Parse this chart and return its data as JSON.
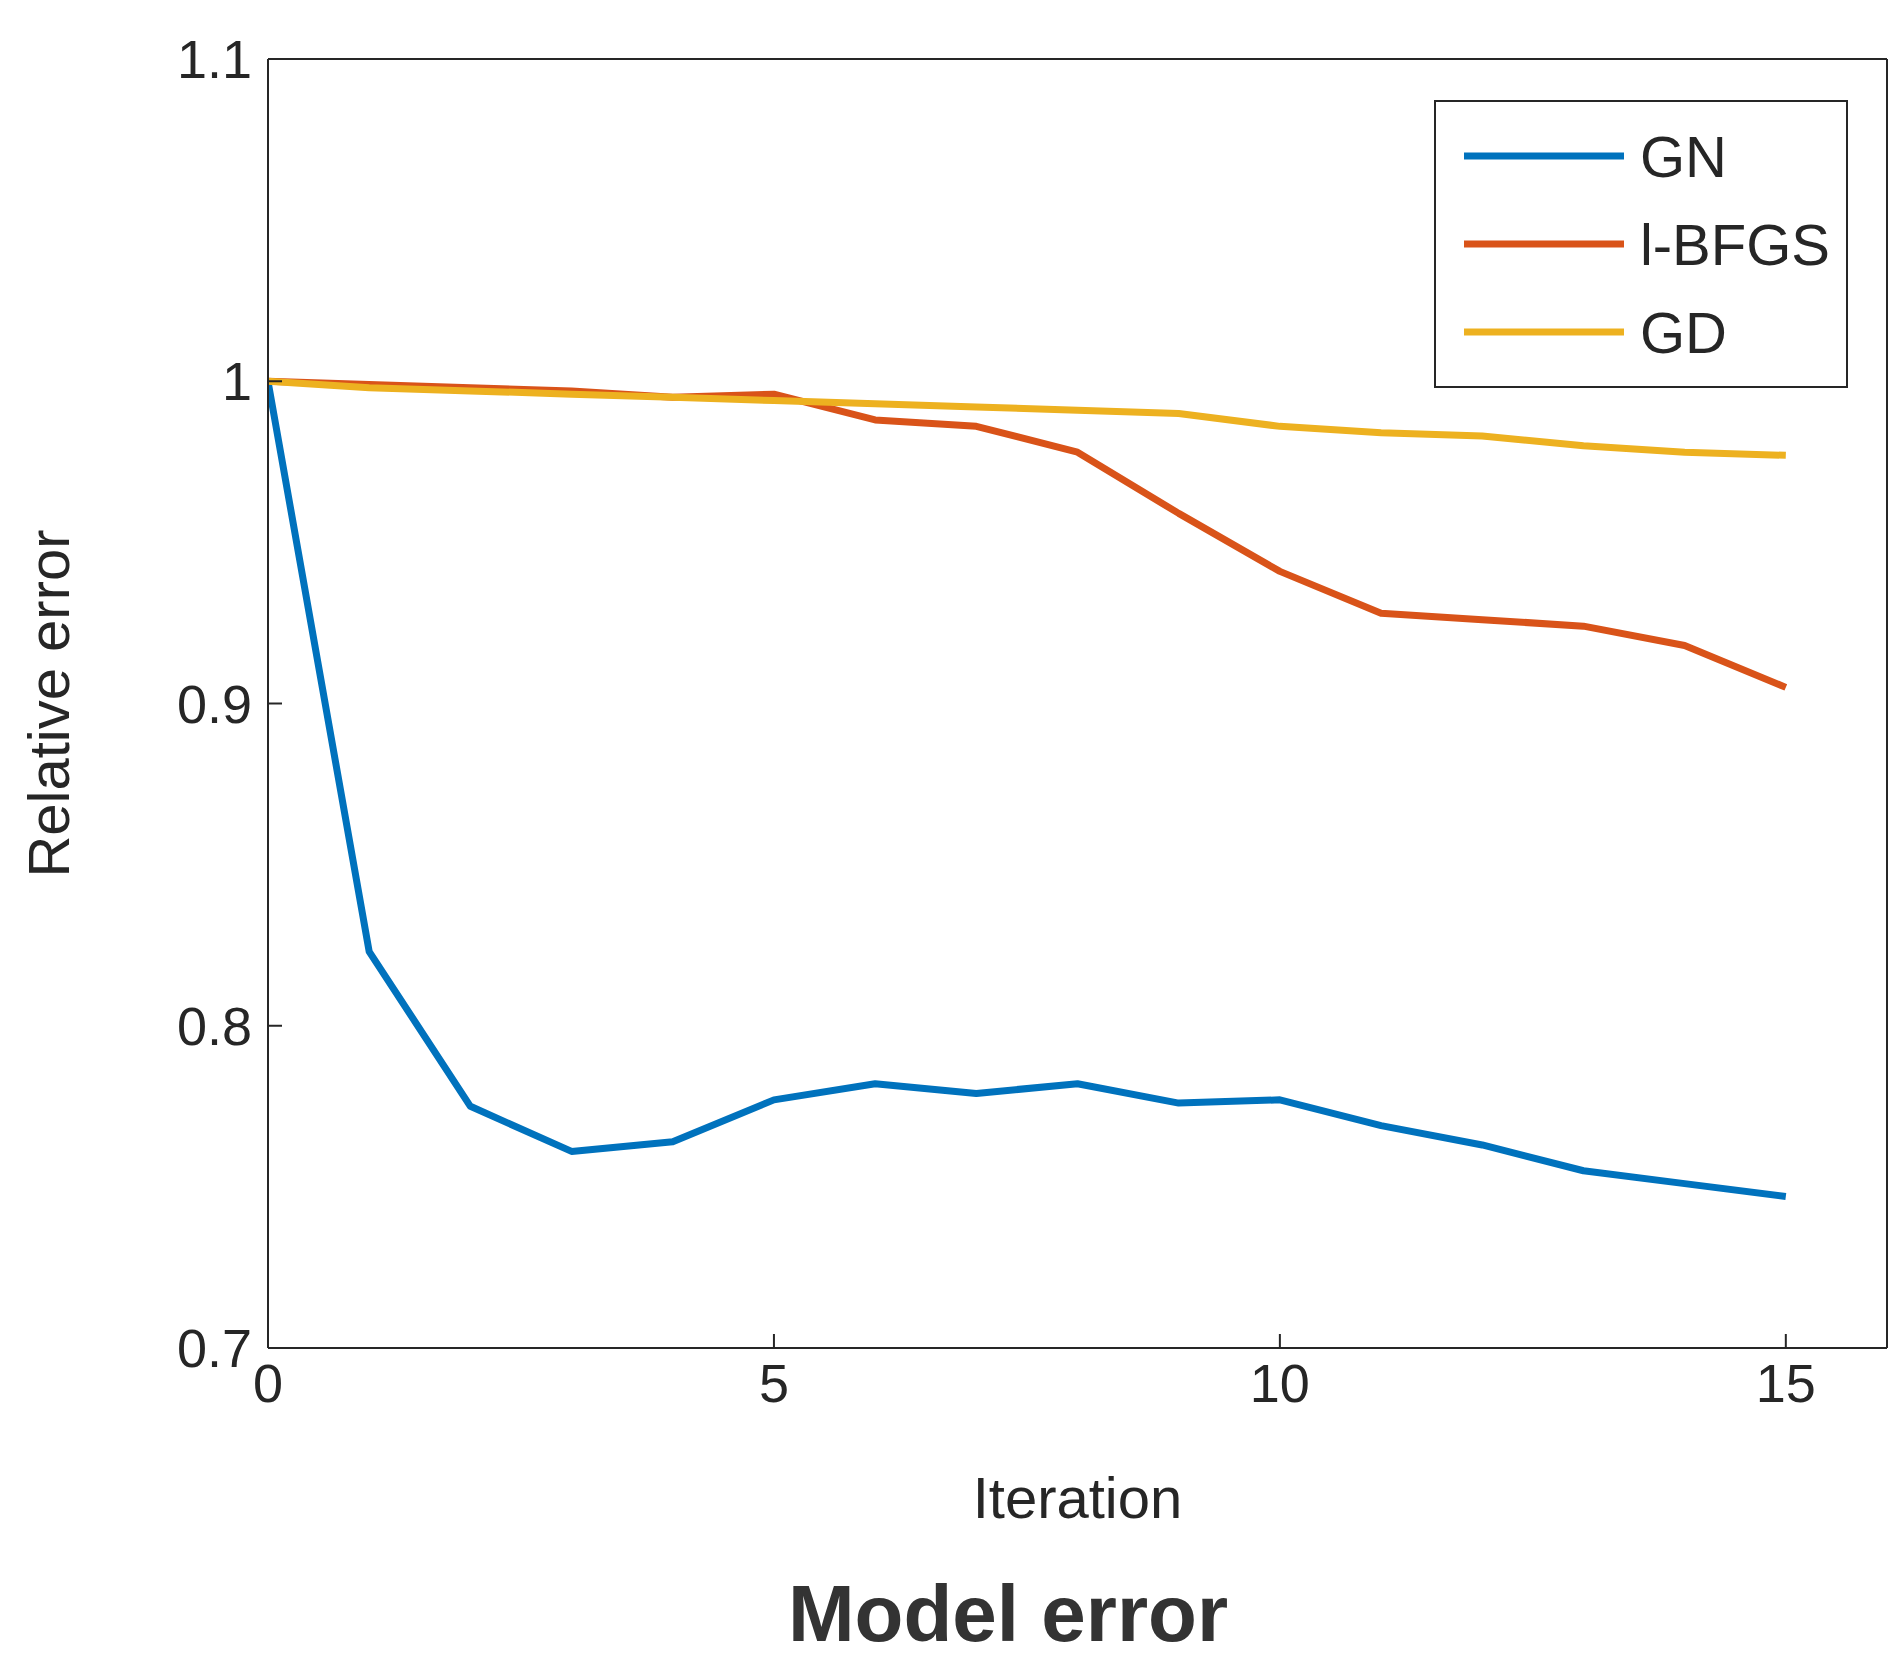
{
  "chart_data": {
    "type": "line",
    "title": "Model error",
    "xlabel": "Iteration",
    "ylabel": "Relative error",
    "x": [
      0,
      1,
      2,
      3,
      4,
      5,
      6,
      7,
      8,
      9,
      10,
      11,
      12,
      13,
      14,
      15
    ],
    "series": [
      {
        "name": "GN",
        "color": "#0072bd",
        "values": [
          1.0,
          0.823,
          0.775,
          0.761,
          0.764,
          0.777,
          0.782,
          0.779,
          0.782,
          0.776,
          0.777,
          0.769,
          0.763,
          0.755,
          0.751,
          0.747
        ]
      },
      {
        "name": "l-BFGS",
        "color": "#d95319",
        "values": [
          1.0,
          0.999,
          0.998,
          0.997,
          0.995,
          0.996,
          0.988,
          0.986,
          0.978,
          0.959,
          0.941,
          0.928,
          0.926,
          0.924,
          0.918,
          0.905
        ]
      },
      {
        "name": "GD",
        "color": "#edb120",
        "values": [
          1.0,
          0.998,
          0.997,
          0.996,
          0.995,
          0.994,
          0.993,
          0.992,
          0.991,
          0.99,
          0.986,
          0.984,
          0.983,
          0.98,
          0.978,
          0.977
        ]
      }
    ],
    "xlim": [
      0,
      16
    ],
    "xticks": [
      0,
      5,
      10,
      15
    ],
    "ylim": [
      0.7,
      1.1
    ],
    "yticks": [
      0.7,
      0.8,
      0.9,
      1,
      1.1
    ],
    "grid": false,
    "legend": "top right",
    "marker": "none",
    "line_style": "solid"
  }
}
